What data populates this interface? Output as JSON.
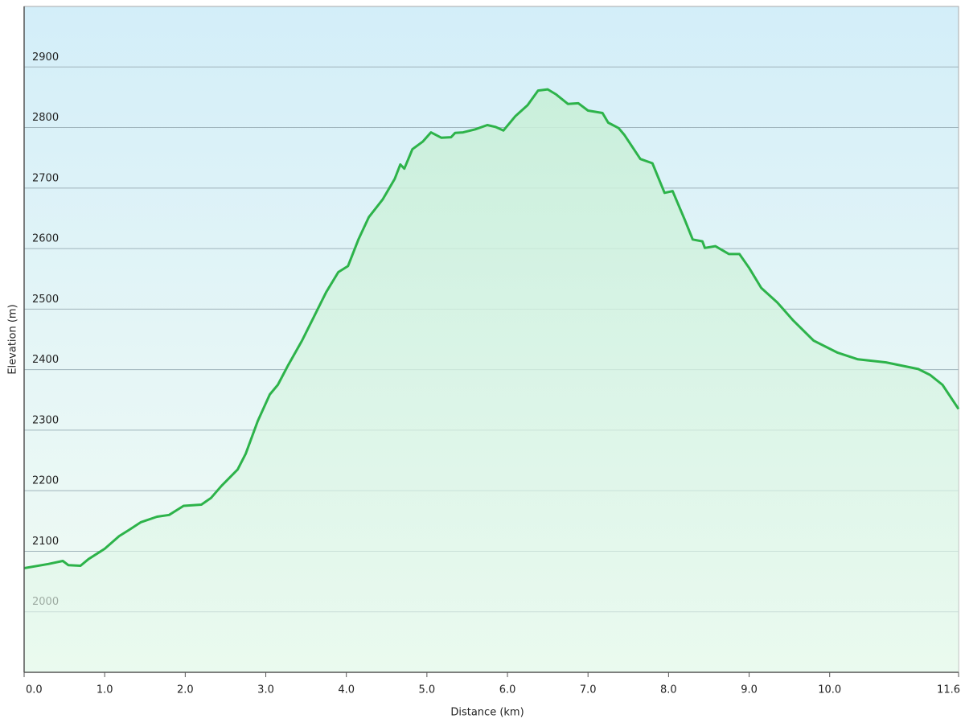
{
  "chart_data": {
    "type": "area",
    "xlabel": "Distance  (km)",
    "ylabel": "Elevation (m)",
    "color": "#2db34a",
    "x": [
      0,
      0.3,
      0.48,
      0.55,
      0.7,
      0.8,
      1.0,
      1.18,
      1.3,
      1.45,
      1.65,
      1.8,
      1.98,
      2.2,
      2.32,
      2.45,
      2.65,
      2.75,
      2.9,
      3.05,
      3.15,
      3.28,
      3.45,
      3.6,
      3.75,
      3.9,
      4.02,
      4.15,
      4.28,
      4.45,
      4.6,
      4.67,
      4.72,
      4.82,
      4.95,
      5.05,
      5.18,
      5.3,
      5.35,
      5.45,
      5.6,
      5.75,
      5.85,
      5.95,
      6.1,
      6.25,
      6.38,
      6.5,
      6.6,
      6.75,
      6.88,
      7.0,
      7.18,
      7.25,
      7.38,
      7.45,
      7.65,
      7.8,
      7.95,
      8.05,
      8.2,
      8.3,
      8.42,
      8.45,
      8.58,
      8.75,
      8.88,
      9.0,
      9.15,
      9.35,
      9.55,
      9.8,
      10.1,
      10.35,
      10.7,
      11.1,
      11.25,
      11.4,
      11.6
    ],
    "values": [
      2072,
      2079,
      2084,
      2077,
      2076,
      2087,
      2104,
      2125,
      2135,
      2148,
      2157,
      2160,
      2175,
      2177,
      2188,
      2208,
      2235,
      2261,
      2315,
      2359,
      2375,
      2408,
      2448,
      2488,
      2528,
      2561,
      2571,
      2615,
      2652,
      2681,
      2715,
      2739,
      2732,
      2764,
      2777,
      2792,
      2783,
      2784,
      2791,
      2792,
      2797,
      2804,
      2801,
      2795,
      2819,
      2837,
      2861,
      2863,
      2855,
      2839,
      2840,
      2828,
      2824,
      2808,
      2799,
      2788,
      2748,
      2741,
      2692,
      2695,
      2648,
      2615,
      2612,
      2601,
      2604,
      2591,
      2591,
      2568,
      2535,
      2511,
      2481,
      2448,
      2428,
      2417,
      2412,
      2401,
      2391,
      2375,
      2335
    ],
    "xlim": [
      0,
      11.6
    ],
    "ylim": [
      1900,
      3000
    ],
    "xticks": [
      {
        "value": 0,
        "label": "0.0"
      },
      {
        "value": 1,
        "label": "1.0"
      },
      {
        "value": 2,
        "label": "2.0"
      },
      {
        "value": 3,
        "label": "3.0"
      },
      {
        "value": 4,
        "label": "4.0"
      },
      {
        "value": 5,
        "label": "5.0"
      },
      {
        "value": 6,
        "label": "6.0"
      },
      {
        "value": 7,
        "label": "7.0"
      },
      {
        "value": 8,
        "label": "8.0"
      },
      {
        "value": 9,
        "label": "9.0"
      },
      {
        "value": 10,
        "label": "10.0"
      },
      11.6
    ],
    "yticks": [
      2000,
      2100,
      2200,
      2300,
      2400,
      2500,
      2600,
      2700,
      2800,
      2900
    ],
    "grid": true
  }
}
